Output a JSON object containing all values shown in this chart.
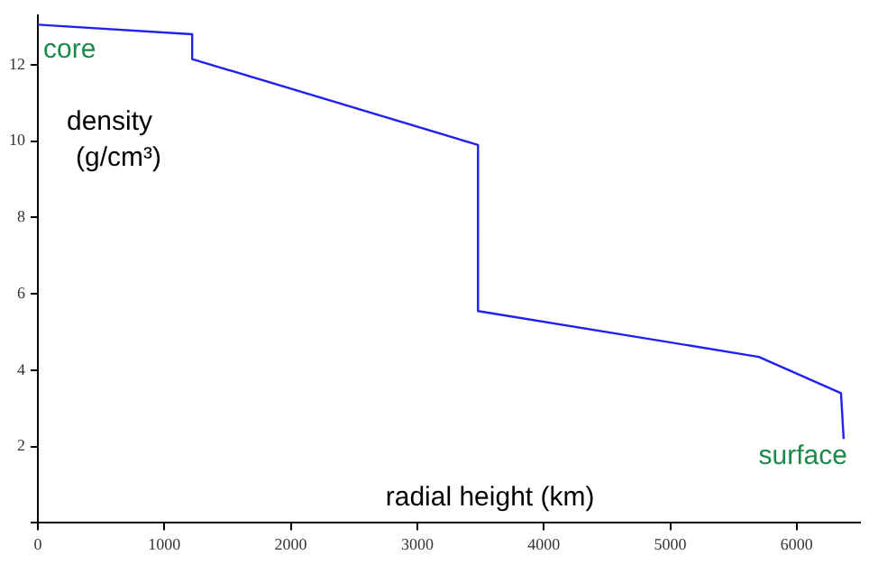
{
  "chart_data": {
    "type": "line",
    "xlabel": "radial height (km)",
    "ylabel": "density (g/cm³)",
    "x": [
      0,
      1220,
      1220,
      3480,
      3480,
      5700,
      6350,
      6371
    ],
    "series": [
      {
        "color": "#2020f0",
        "values": [
          13.05,
          12.8,
          12.15,
          9.9,
          5.55,
          4.35,
          3.4,
          2.2
        ]
      }
    ],
    "xlim": [
      0,
      6500
    ],
    "xticks": [
      0,
      1000,
      2000,
      3000,
      4000,
      5000,
      6000
    ],
    "ylim": [
      0,
      13.3
    ],
    "yticks": [
      {
        "value": 0,
        "label": null
      },
      2,
      4,
      6,
      8,
      10,
      12
    ],
    "grid": false,
    "legend": false,
    "marker": "none",
    "line_style": "solid",
    "annotations": [
      {
        "text": "core",
        "x": 0,
        "y": 13.05
      },
      {
        "text": "surface",
        "x": 6371,
        "y": 2.2
      }
    ]
  }
}
